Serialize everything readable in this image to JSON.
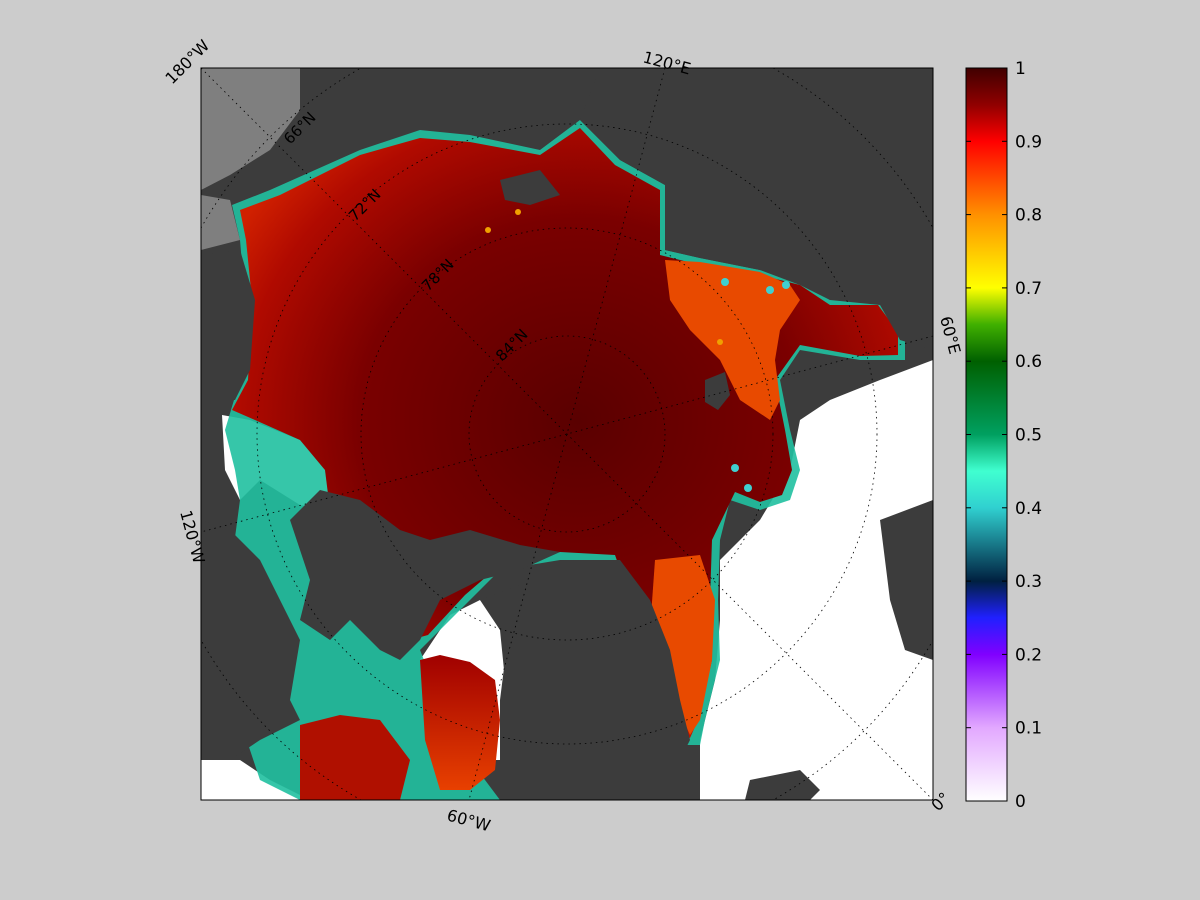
{
  "map": {
    "projection": "north-polar-stereographic",
    "variable": "sea ice concentration",
    "lon_labels": [
      "180°W",
      "120°E",
      "60°E",
      "0°",
      "60°W",
      "120°W"
    ],
    "lat_labels": [
      "66°N",
      "72°N",
      "78°N",
      "84°N"
    ],
    "graticule": "dotted",
    "colors": {
      "background": "#cccccc",
      "land": "#3c3c3c",
      "land_outside_domain": "#7f7f7f",
      "open_water": "#ffffff",
      "ice_high": "#5a0000",
      "ice_mid": "#b00000",
      "ice_edge": "#ff6000"
    }
  },
  "chart_data": {
    "type": "heatmap",
    "title": "",
    "colorbar": {
      "range": [
        0,
        1
      ],
      "ticks": [
        0,
        0.1,
        0.2,
        0.3,
        0.4,
        0.5,
        0.6,
        0.7,
        0.8,
        0.9,
        1
      ],
      "tick_labels": [
        "0",
        "0.1",
        "0.2",
        "0.3",
        "0.4",
        "0.5",
        "0.6",
        "0.7",
        "0.8",
        "0.9",
        "1"
      ],
      "colormap_stops": [
        {
          "value": 0.0,
          "color": "#ffffff"
        },
        {
          "value": 0.1,
          "color": "#e2a8ff"
        },
        {
          "value": 0.2,
          "color": "#8000ff"
        },
        {
          "value": 0.25,
          "color": "#2020ff"
        },
        {
          "value": 0.3,
          "color": "#002040"
        },
        {
          "value": 0.4,
          "color": "#30d0d0"
        },
        {
          "value": 0.45,
          "color": "#40ffd0"
        },
        {
          "value": 0.5,
          "color": "#00a060"
        },
        {
          "value": 0.6,
          "color": "#006000"
        },
        {
          "value": 0.65,
          "color": "#40b000"
        },
        {
          "value": 0.7,
          "color": "#ffff00"
        },
        {
          "value": 0.8,
          "color": "#ff9000"
        },
        {
          "value": 0.9,
          "color": "#ff0000"
        },
        {
          "value": 0.95,
          "color": "#900000"
        },
        {
          "value": 1.0,
          "color": "#400000"
        }
      ]
    }
  }
}
